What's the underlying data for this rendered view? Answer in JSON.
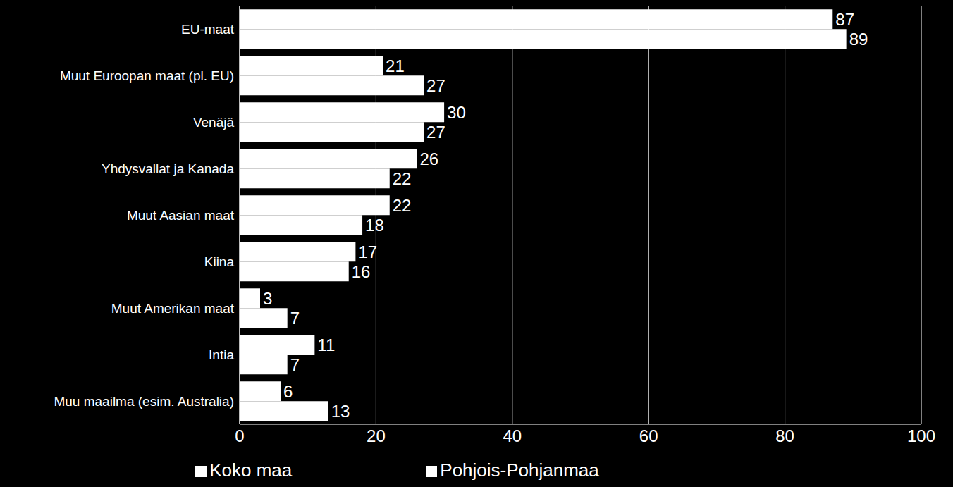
{
  "chart_data": {
    "type": "bar",
    "orientation": "horizontal",
    "categories": [
      "EU-maat",
      "Muut Euroopan maat (pl. EU)",
      "Venäjä",
      "Yhdysvallat ja Kanada",
      "Muut Aasian maat",
      "Kiina",
      "Muut Amerikan maat",
      "Intia",
      "Muu maailma (esim. Australia)"
    ],
    "series": [
      {
        "name": "Pohjois-Pohjanmaa",
        "color": "#ffffff",
        "values": [
          87,
          21,
          30,
          26,
          22,
          17,
          3,
          11,
          6
        ]
      },
      {
        "name": "Koko maa",
        "color": "#ffffff",
        "values": [
          89,
          27,
          27,
          22,
          18,
          16,
          7,
          7,
          13
        ]
      }
    ],
    "xlim": [
      0,
      100
    ],
    "xticks": [
      0,
      20,
      40,
      60,
      80,
      100
    ],
    "grid": true,
    "data_labels": true,
    "legend": "bottom"
  }
}
